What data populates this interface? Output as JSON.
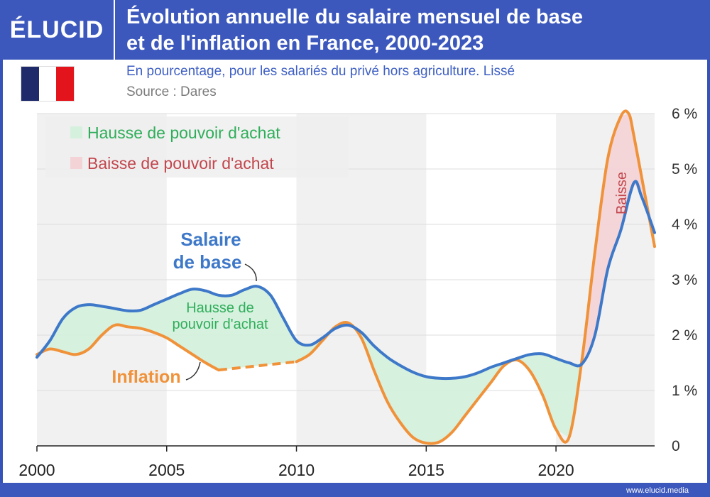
{
  "header": {
    "logo": "ÉLUCID",
    "title_line1": "Évolution annuelle du salaire mensuel de base",
    "title_line2": "et de l'inflation en France, 2000-2023",
    "subtitle": "En pourcentage, pour les salariés du privé hors agriculture. Lissé",
    "source": "Source : Dares"
  },
  "flag_colors": [
    "#1f2a6b",
    "#ffffff",
    "#e3141b"
  ],
  "footer": {
    "site": "www.elucid.media"
  },
  "colors": {
    "salaire": "#3d78c9",
    "inflation": "#f0923a",
    "hausse_fill": "#d5f0dd",
    "baisse_fill": "#f3d3d6",
    "hausse_text": "#2fae5a",
    "baisse_text": "#c2464d",
    "band": "#f1f1f1"
  },
  "legend": {
    "hausse": "Hausse de pouvoir d'achat",
    "baisse": "Baisse de pouvoir d'achat"
  },
  "annotations": {
    "salaire_line1": "Salaire",
    "salaire_line2": "de base",
    "inflation": "Inflation",
    "hausse_line1": "Hausse de",
    "hausse_line2": "pouvoir d'achat",
    "baisse": "Baisse"
  },
  "chart_data": {
    "type": "line",
    "title": "Évolution annuelle du salaire mensuel de base et de l'inflation en France, 2000-2023",
    "xlim": [
      2000,
      2023.8
    ],
    "ylim": [
      0,
      6
    ],
    "x_ticks": [
      2000,
      2005,
      2010,
      2015,
      2020
    ],
    "x_tick_labels": [
      "2000",
      "2005",
      "2010",
      "2015",
      "2020"
    ],
    "y_ticks": [
      0,
      1,
      2,
      3,
      4,
      5,
      6
    ],
    "y_tick_labels": [
      "0",
      "1 %",
      "2 %",
      "3 %",
      "4 %",
      "5 %",
      "6 %"
    ],
    "grid": true,
    "legend_position": "top-left",
    "series": [
      {
        "name": "Salaire de base",
        "x": [
          2000,
          2000.5,
          2001,
          2001.5,
          2002,
          2002.5,
          2003,
          2003.5,
          2004,
          2004.5,
          2005,
          2005.5,
          2006,
          2006.5,
          2007,
          2007.5,
          2008,
          2008.5,
          2009,
          2009.5,
          2010,
          2010.5,
          2011,
          2011.5,
          2012,
          2012.5,
          2013,
          2013.5,
          2014,
          2014.5,
          2015,
          2015.5,
          2016,
          2016.5,
          2017,
          2017.5,
          2018,
          2018.5,
          2019,
          2019.5,
          2020,
          2020.5,
          2021,
          2021.5,
          2022,
          2022.5,
          2023,
          2023.3,
          2023.8
        ],
        "values": [
          1.6,
          1.9,
          2.3,
          2.5,
          2.55,
          2.52,
          2.48,
          2.44,
          2.45,
          2.55,
          2.65,
          2.75,
          2.83,
          2.8,
          2.72,
          2.72,
          2.82,
          2.88,
          2.72,
          2.3,
          1.9,
          1.82,
          1.95,
          2.12,
          2.18,
          2.05,
          1.8,
          1.6,
          1.45,
          1.33,
          1.25,
          1.22,
          1.22,
          1.25,
          1.32,
          1.42,
          1.5,
          1.58,
          1.65,
          1.66,
          1.58,
          1.5,
          1.48,
          2.0,
          3.2,
          3.9,
          4.75,
          4.5,
          3.85
        ]
      },
      {
        "name": "Inflation",
        "x": [
          2000,
          2000.5,
          2001,
          2001.5,
          2002,
          2002.5,
          2003,
          2003.5,
          2004,
          2004.5,
          2005,
          2005.5,
          2006,
          2006.5,
          2007,
          2010,
          2010.5,
          2011,
          2011.5,
          2012,
          2012.5,
          2013,
          2013.5,
          2014,
          2014.5,
          2015,
          2015.5,
          2016,
          2016.5,
          2017,
          2017.5,
          2018,
          2018.5,
          2019,
          2019.5,
          2020,
          2020.5,
          2021,
          2021.5,
          2022,
          2022.5,
          2022.8,
          2023,
          2023.4,
          2023.8
        ],
        "values": [
          1.65,
          1.75,
          1.7,
          1.65,
          1.75,
          2.0,
          2.18,
          2.15,
          2.12,
          2.05,
          1.95,
          1.8,
          1.65,
          1.5,
          1.37,
          1.52,
          1.65,
          1.9,
          2.15,
          2.22,
          1.95,
          1.35,
          0.8,
          0.42,
          0.15,
          0.05,
          0.07,
          0.25,
          0.55,
          0.85,
          1.15,
          1.45,
          1.55,
          1.35,
          0.9,
          0.3,
          0.15,
          1.55,
          3.5,
          5.2,
          5.95,
          6.0,
          5.6,
          4.6,
          3.6
        ]
      }
    ],
    "dashed_segment": {
      "series": "Inflation",
      "x_from": 2007,
      "x_to": 2010
    }
  }
}
